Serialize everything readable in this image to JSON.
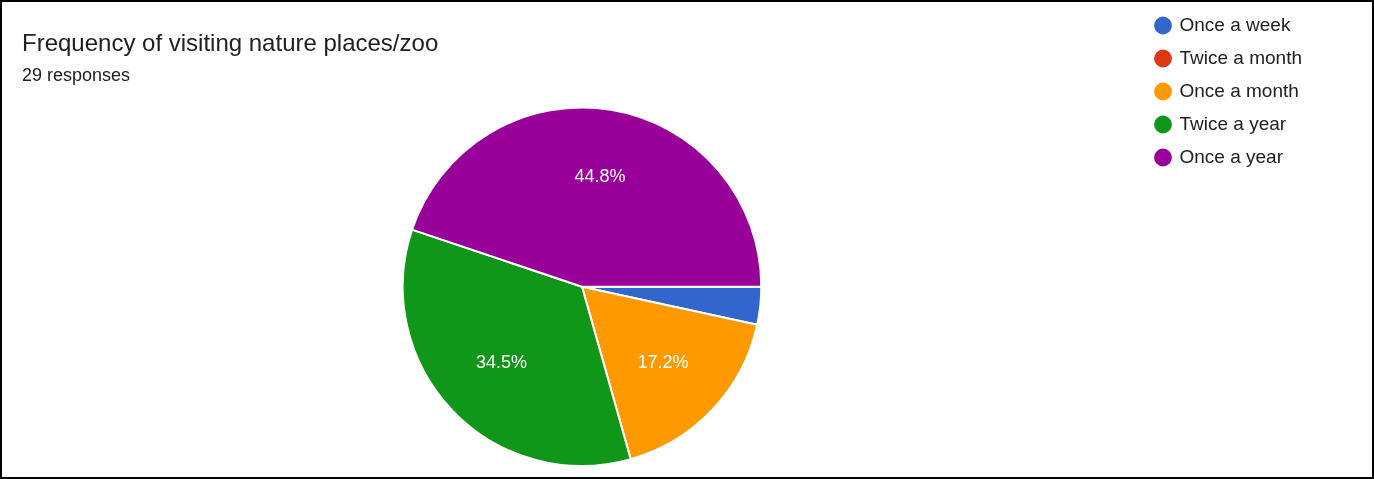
{
  "chart_data": {
    "type": "pie",
    "title": "Frequency of visiting nature places/zoo",
    "subtitle": "29 responses",
    "categories": [
      "Once a week",
      "Twice a month",
      "Once a month",
      "Twice a year",
      "Once a year"
    ],
    "values": [
      3.4,
      0,
      17.2,
      34.5,
      44.8
    ],
    "colors": [
      "#3366cc",
      "#dc3912",
      "#ff9900",
      "#109618",
      "#990099"
    ],
    "value_labels": [
      null,
      null,
      "17.2%",
      "34.5%",
      "44.8%"
    ],
    "legend": "top right"
  }
}
